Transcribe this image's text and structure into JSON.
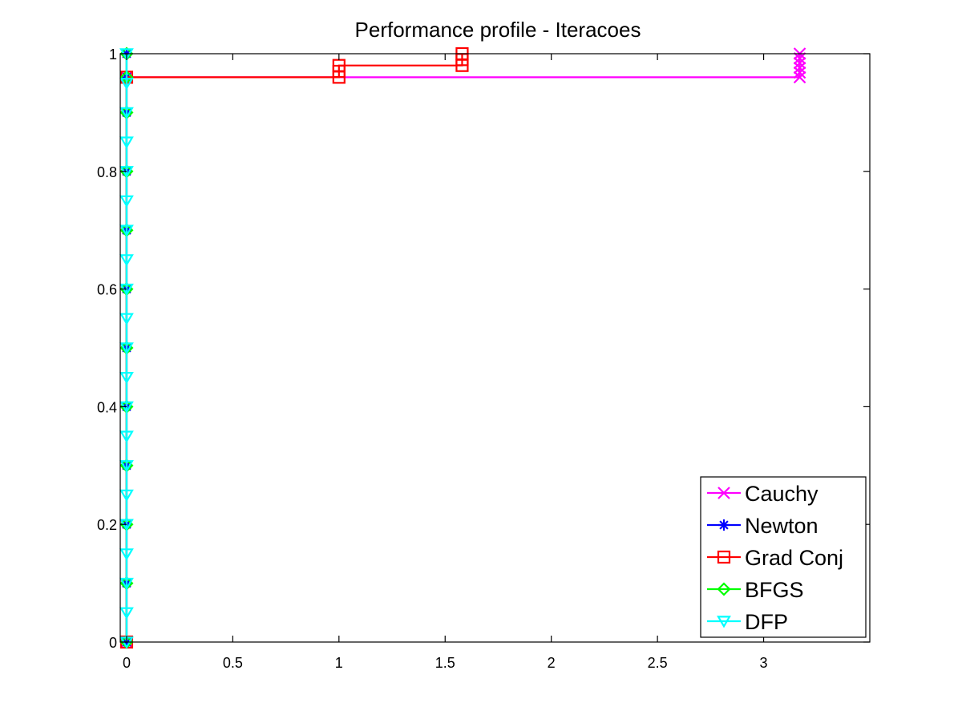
{
  "chart_data": {
    "type": "line",
    "title": "Performance profile - Iteracoes",
    "xlabel": "",
    "ylabel": "",
    "xlim": [
      -0.03,
      3.5
    ],
    "ylim": [
      0,
      1
    ],
    "xticks": [
      0,
      0.5,
      1,
      1.5,
      2,
      2.5,
      3
    ],
    "xtick_labels": [
      "0",
      "0.5",
      "1",
      "1.5",
      "2",
      "2.5",
      "3"
    ],
    "yticks": [
      0,
      0.2,
      0.4,
      0.6,
      0.8,
      1
    ],
    "ytick_labels": [
      "0",
      "0.2",
      "0.4",
      "0.6",
      "0.8",
      "1"
    ],
    "grid": false,
    "legend_position": "bottom-right",
    "series": [
      {
        "name": "Cauchy",
        "color": "#ff00ff",
        "marker": "x",
        "x": [
          0,
          0,
          3.17,
          3.17,
          3.17,
          3.17,
          3.17,
          3.17
        ],
        "y": [
          0,
          0.96,
          0.96,
          0.968,
          0.976,
          0.984,
          0.992,
          1.0
        ]
      },
      {
        "name": "Newton",
        "color": "#0000ff",
        "marker": "star",
        "x": [
          0,
          0,
          0,
          0,
          0,
          0,
          0,
          0,
          0,
          0,
          0,
          0
        ],
        "y": [
          0,
          0.1,
          0.2,
          0.3,
          0.4,
          0.5,
          0.6,
          0.7,
          0.8,
          0.9,
          0.96,
          1.0
        ]
      },
      {
        "name": "Grad Conj",
        "color": "#ff0000",
        "marker": "square",
        "x": [
          0,
          0,
          1,
          1,
          1,
          1.58,
          1.58,
          1.58
        ],
        "y": [
          0,
          0.96,
          0.96,
          0.97,
          0.98,
          0.98,
          0.99,
          1.0
        ]
      },
      {
        "name": "BFGS",
        "color": "#00ff00",
        "marker": "diamond",
        "x": [
          0,
          0,
          0,
          0,
          0,
          0,
          0,
          0,
          0,
          0,
          0,
          0
        ],
        "y": [
          0,
          0.1,
          0.2,
          0.3,
          0.4,
          0.5,
          0.6,
          0.7,
          0.8,
          0.9,
          0.96,
          1.0
        ]
      },
      {
        "name": "DFP",
        "color": "#00ffff",
        "marker": "triangle-down",
        "x": [
          0,
          0,
          0,
          0,
          0,
          0,
          0,
          0,
          0,
          0,
          0,
          0,
          0,
          0,
          0,
          0,
          0,
          0,
          0,
          0,
          0
        ],
        "y": [
          0,
          0.05,
          0.1,
          0.15,
          0.2,
          0.25,
          0.3,
          0.35,
          0.4,
          0.45,
          0.5,
          0.55,
          0.6,
          0.65,
          0.7,
          0.75,
          0.8,
          0.85,
          0.9,
          0.95,
          1.0
        ]
      }
    ]
  }
}
